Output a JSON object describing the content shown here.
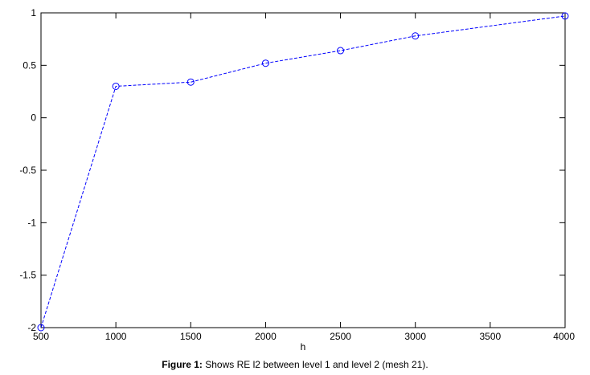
{
  "chart_data": {
    "type": "line",
    "title": "",
    "xlabel": "h",
    "ylabel": "",
    "x": [
      500,
      1000,
      1500,
      2000,
      2500,
      3000,
      4000
    ],
    "series": [
      {
        "values": [
          -2.0,
          0.3,
          0.34,
          0.52,
          0.64,
          0.78,
          0.97
        ]
      }
    ],
    "xlim": [
      500,
      4000
    ],
    "ylim": [
      -2,
      1
    ],
    "xticks": [
      500,
      1000,
      1500,
      2000,
      2500,
      3000,
      3500,
      4000
    ],
    "xtick_labels": [
      "500",
      "1000",
      "1500",
      "2000",
      "2500",
      "3000",
      "3500",
      "4000"
    ],
    "yticks": [
      1,
      0.5,
      0,
      -0.5,
      -1,
      -1.5,
      -2
    ],
    "ytick_labels": [
      "1",
      "0.5",
      "0",
      "-0.5",
      "-1",
      "-1.5",
      "-2"
    ],
    "grid": false,
    "line_color": "#0000ff",
    "line_style": "dashed",
    "marker": "circle"
  },
  "caption": {
    "label": "Figure 1:",
    "text": " Shows RE l2 between level 1 and level 2 (mesh 21)."
  }
}
